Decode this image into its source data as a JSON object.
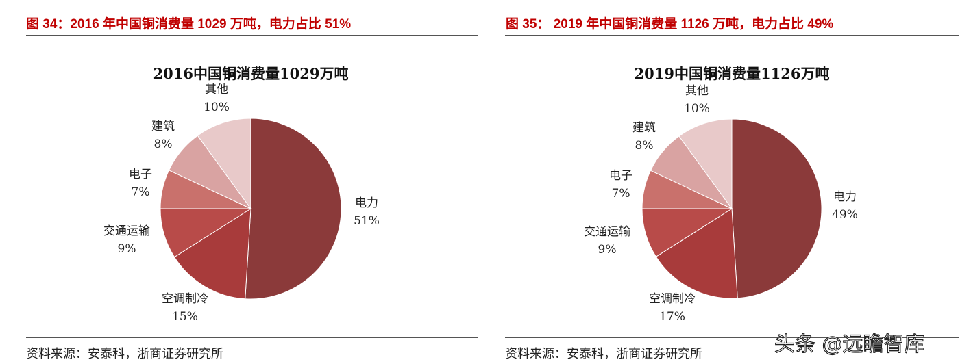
{
  "figures": [
    {
      "caption": "图 34：2016 年中国铜消费量 1029 万吨，电力占比 51%",
      "source": "资料来源：安泰科，浙商证券研究所"
    },
    {
      "caption": "图 35： 2019 年中国铜消费量 1126 万吨，电力占比 49%",
      "source": "资料来源：安泰科，浙商证券研究所"
    }
  ],
  "watermark": "头条 @远瞻智库",
  "chart_data": [
    {
      "type": "pie",
      "title": "2016中国铜消费量1029万吨",
      "categories": [
        "电力",
        "空调制冷",
        "交通运输",
        "电子",
        "建筑",
        "其他"
      ],
      "values": [
        51,
        15,
        9,
        7,
        8,
        10
      ],
      "labels": [
        "51%",
        "15%",
        "9%",
        "7%",
        "8%",
        "10%"
      ],
      "colors": [
        "#8b3a3a",
        "#a83b3b",
        "#b84b49",
        "#c9716c",
        "#d9a3a2",
        "#e8c9c9"
      ]
    },
    {
      "type": "pie",
      "title": "2019中国铜消费量1126万吨",
      "categories": [
        "电力",
        "空调制冷",
        "交通运输",
        "电子",
        "建筑",
        "其他"
      ],
      "values": [
        49,
        17,
        9,
        7,
        8,
        10
      ],
      "labels": [
        "49%",
        "17%",
        "9%",
        "7%",
        "8%",
        "10%"
      ],
      "colors": [
        "#8b3a3a",
        "#a83b3b",
        "#b84b49",
        "#c9716c",
        "#d9a3a2",
        "#e8c9c9"
      ]
    }
  ]
}
